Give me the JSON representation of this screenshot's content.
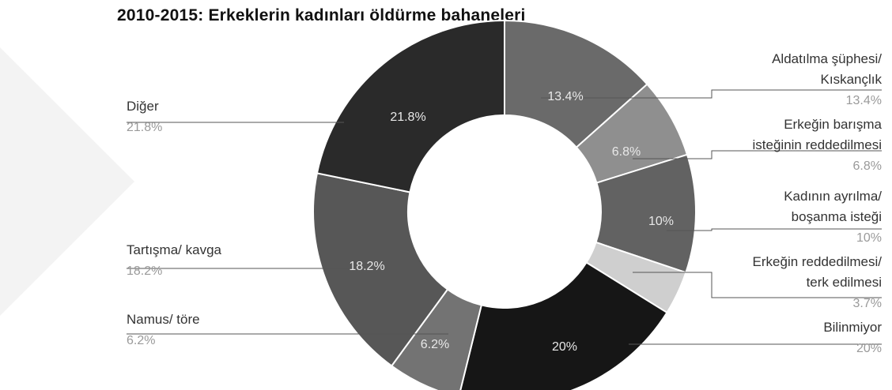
{
  "chart_data": {
    "type": "pie",
    "title": "2010-2015: Erkeklerin kadınları öldürme bahaneleri",
    "donut": true,
    "slices": [
      {
        "name": "Aldatılma şüphesi/ Kıskançlık",
        "value": 13.4,
        "label": "13.4%",
        "color": "#6a6a6a",
        "lines": [
          "Aldatılma şüphesi/",
          "Kıskançlık"
        ],
        "side": "right"
      },
      {
        "name": "Erkeğin barışma isteğinin reddedilmesi",
        "value": 6.8,
        "label": "6.8%",
        "color": "#8f8f8f",
        "lines": [
          "Erkeğin barışma",
          "isteğinin reddedilmesi"
        ],
        "side": "right"
      },
      {
        "name": "Kadının ayrılma/ boşanma isteği",
        "value": 10,
        "label": "10%",
        "color": "#626262",
        "lines": [
          "Kadının ayrılma/",
          "boşanma isteği"
        ],
        "side": "right"
      },
      {
        "name": "Erkeğin reddedilmesi/ terk edilmesi",
        "value": 3.7,
        "label": "3.7%",
        "color": "#cfcfcf",
        "lines": [
          "Erkeğin reddedilmesi/",
          "terk edilmesi"
        ],
        "side": "right"
      },
      {
        "name": "Bilinmiyor",
        "value": 20,
        "label": "20%",
        "color": "#161616",
        "lines": [
          "Bilinmiyor"
        ],
        "side": "right"
      },
      {
        "name": "Namus/ töre",
        "value": 6.2,
        "label": "6.2%",
        "color": "#737373",
        "lines": [
          "Namus/ töre"
        ],
        "side": "left"
      },
      {
        "name": "Tartışma/ kavga",
        "value": 18.2,
        "label": "18.2%",
        "color": "#575757",
        "lines": [
          "Tartışma/ kavga"
        ],
        "side": "left"
      },
      {
        "name": "Diğer",
        "value": 21.8,
        "label": "21.8%",
        "color": "#2a2a2a",
        "lines": [
          "Diğer"
        ],
        "side": "left"
      }
    ]
  }
}
